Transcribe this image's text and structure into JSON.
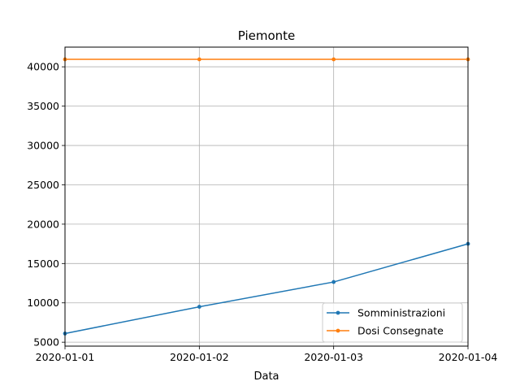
{
  "chart_data": {
    "type": "line",
    "title": "Piemonte",
    "xlabel": "Data",
    "ylabel": "",
    "x": [
      "2020-01-01",
      "2020-01-02",
      "2020-01-03",
      "2020-01-04"
    ],
    "xlim": [
      "2020-01-01",
      "2020-01-04"
    ],
    "ylim": [
      4500,
      42500
    ],
    "yticks": [
      5000,
      10000,
      15000,
      20000,
      25000,
      30000,
      35000,
      40000
    ],
    "grid": true,
    "legend_position": "lower-right",
    "series": [
      {
        "name": "Somministrazioni",
        "color": "#1f77b4",
        "values": [
          6100,
          9500,
          12650,
          17500
        ]
      },
      {
        "name": "Dosi Consegnate",
        "color": "#ff7f0e",
        "values": [
          40950,
          40950,
          40950,
          40950
        ]
      }
    ]
  }
}
